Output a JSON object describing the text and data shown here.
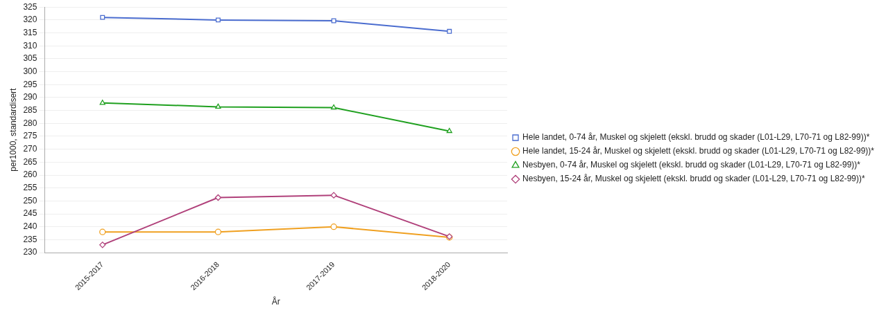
{
  "chart_data": {
    "type": "line",
    "xlabel": "År",
    "ylabel": "per1000, standardisert",
    "categories": [
      "2015-2017",
      "2016-2018",
      "2017-2019",
      "2018-2020"
    ],
    "series": [
      {
        "name": "Hele landet, 0-74 år, Muskel og skjelett (ekskl. brudd og skader (L01-L29, L70-71 og L82-99))*",
        "color": "#4a6ccf",
        "marker": "square",
        "values": [
          321,
          320,
          319.7,
          315.6
        ]
      },
      {
        "name": "Hele landet, 15-24 år, Muskel og skjelett (ekskl. brudd og skader (L01-L29, L70-71 og L82-99))*",
        "color": "#f0a020",
        "marker": "circle",
        "values": [
          238,
          238,
          240,
          235.9
        ]
      },
      {
        "name": "Nesbyen, 0-74 år, Muskel og skjelett (ekskl. brudd og skader (L01-L29, L70-71 og L82-99))*",
        "color": "#1fa01f",
        "marker": "triangle",
        "values": [
          287.9,
          286.4,
          286.1,
          277
        ]
      },
      {
        "name": "Nesbyen, 15-24 år, Muskel og skjelett (ekskl. brudd og skader (L01-L29, L70-71 og L82-99))*",
        "color": "#b0407a",
        "marker": "diamond",
        "values": [
          233,
          251.3,
          252.2,
          236.2
        ]
      }
    ],
    "ylim": [
      230,
      325
    ],
    "yticks": [
      230,
      235,
      240,
      245,
      250,
      255,
      260,
      265,
      270,
      275,
      280,
      285,
      290,
      295,
      300,
      305,
      310,
      315,
      320,
      325
    ],
    "grid": "y",
    "legend": "right",
    "line_style": "solid"
  }
}
